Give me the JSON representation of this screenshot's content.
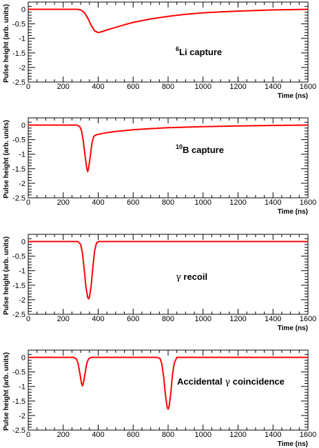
{
  "chart_data": [
    {
      "type": "line",
      "xlabel": "Time (ns)",
      "ylabel": "Pulse height (arb. units)",
      "xlim": [
        0,
        1600
      ],
      "ylim": [
        -2.5,
        0.25
      ],
      "xticks": [
        "0",
        "200",
        "400",
        "600",
        "800",
        "1000",
        "1200",
        "1400",
        "1600"
      ],
      "yticks": [
        "0",
        "-0.5",
        "-1",
        "-1.5",
        "-2",
        "-2.5"
      ],
      "annotation": {
        "sup": "6",
        "text": "Li capture"
      },
      "series": [
        {
          "color": "#ff0000",
          "x": [
            0,
            280,
            300,
            320,
            340,
            360,
            380,
            400,
            420,
            450,
            500,
            550,
            600,
            700,
            800,
            900,
            1000,
            1100,
            1200,
            1300,
            1400,
            1500,
            1600
          ],
          "y": [
            0,
            0,
            -0.02,
            -0.1,
            -0.3,
            -0.55,
            -0.74,
            -0.8,
            -0.77,
            -0.71,
            -0.62,
            -0.53,
            -0.45,
            -0.33,
            -0.24,
            -0.17,
            -0.12,
            -0.09,
            -0.06,
            -0.04,
            -0.02,
            -0.01,
            0
          ]
        }
      ]
    },
    {
      "type": "line",
      "xlabel": "Time (ns)",
      "ylabel": "Pulse height (arb. units)",
      "xlim": [
        0,
        1600
      ],
      "ylim": [
        -2.5,
        0.25
      ],
      "xticks": [
        "0",
        "200",
        "400",
        "600",
        "800",
        "1000",
        "1200",
        "1400",
        "1600"
      ],
      "yticks": [
        "0",
        "-0.5",
        "-1",
        "-1.5",
        "-2",
        "-2.5"
      ],
      "annotation": {
        "sup": "10",
        "text": "B capture"
      },
      "series": [
        {
          "color": "#ff0000",
          "x": [
            0,
            280,
            295,
            305,
            315,
            325,
            335,
            340,
            345,
            355,
            365,
            375,
            390,
            420,
            450,
            500,
            600,
            700,
            800,
            900,
            1000,
            1200,
            1400,
            1600
          ],
          "y": [
            0,
            0,
            -0.05,
            -0.2,
            -0.55,
            -1.05,
            -1.5,
            -1.6,
            -1.5,
            -1.05,
            -0.6,
            -0.38,
            -0.33,
            -0.29,
            -0.26,
            -0.22,
            -0.16,
            -0.12,
            -0.09,
            -0.07,
            -0.05,
            -0.03,
            -0.01,
            0
          ]
        }
      ]
    },
    {
      "type": "line",
      "xlabel": "Time (ns)",
      "ylabel": "Pulse height (arb. units)",
      "xlim": [
        0,
        1600
      ],
      "ylim": [
        -2.5,
        0.25
      ],
      "xticks": [
        "0",
        "200",
        "400",
        "600",
        "800",
        "1000",
        "1200",
        "1400",
        "1600"
      ],
      "yticks": [
        "0",
        "-0.5",
        "-1",
        "-1.5",
        "-2",
        "-2.5"
      ],
      "annotation": {
        "pre": "γ",
        "text": " recoil"
      },
      "series": [
        {
          "color": "#ff0000",
          "x": [
            0,
            285,
            300,
            310,
            320,
            330,
            340,
            345,
            350,
            360,
            370,
            380,
            390,
            400,
            1600
          ],
          "y": [
            0,
            0,
            -0.1,
            -0.4,
            -0.95,
            -1.55,
            -1.92,
            -1.97,
            -1.92,
            -1.5,
            -0.85,
            -0.3,
            -0.05,
            0,
            0
          ]
        }
      ]
    },
    {
      "type": "line",
      "xlabel": "Time (ns)",
      "ylabel": "Pulse height (arb. units)",
      "xlim": [
        0,
        1600
      ],
      "ylim": [
        -2.5,
        0.25
      ],
      "xticks": [
        "0",
        "200",
        "400",
        "600",
        "800",
        "1000",
        "1200",
        "1400",
        "1600"
      ],
      "yticks": [
        "0",
        "-0.5",
        "-1",
        "-1.5",
        "-2",
        "-2.5"
      ],
      "annotation": {
        "text": "Accidental ",
        "post": "γ",
        "text2": " coincidence"
      },
      "series": [
        {
          "color": "#ff0000",
          "x": [
            0,
            260,
            275,
            285,
            295,
            305,
            310,
            315,
            325,
            335,
            345,
            360,
            740,
            755,
            765,
            775,
            785,
            795,
            800,
            805,
            815,
            825,
            835,
            850,
            1600
          ],
          "y": [
            0,
            0,
            -0.05,
            -0.2,
            -0.55,
            -0.9,
            -0.98,
            -0.9,
            -0.55,
            -0.2,
            -0.05,
            0,
            0,
            -0.05,
            -0.25,
            -0.7,
            -1.3,
            -1.72,
            -1.78,
            -1.72,
            -1.25,
            -0.6,
            -0.2,
            0,
            0
          ]
        }
      ]
    }
  ]
}
